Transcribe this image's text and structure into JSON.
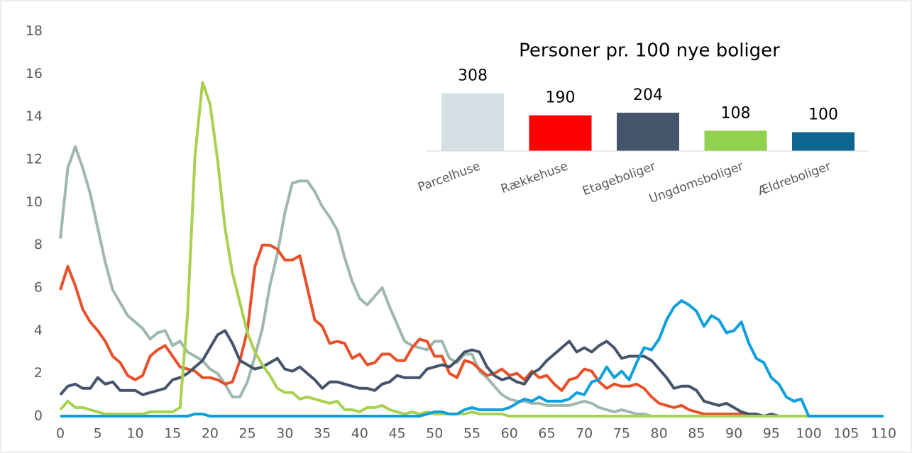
{
  "chart_data": [
    {
      "type": "line",
      "x": [
        0,
        1,
        2,
        3,
        4,
        5,
        6,
        7,
        8,
        9,
        10,
        11,
        12,
        13,
        14,
        15,
        16,
        17,
        18,
        19,
        20,
        21,
        22,
        23,
        24,
        25,
        26,
        27,
        28,
        29,
        30,
        31,
        32,
        33,
        34,
        35,
        36,
        37,
        38,
        39,
        40,
        41,
        42,
        43,
        44,
        45,
        46,
        47,
        48,
        49,
        50,
        51,
        52,
        53,
        54,
        55,
        56,
        57,
        58,
        59,
        60,
        61,
        62,
        63,
        64,
        65,
        66,
        67,
        68,
        69,
        70,
        71,
        72,
        73,
        74,
        75,
        76,
        77,
        78,
        79,
        80,
        81,
        82,
        83,
        84,
        85,
        86,
        87,
        88,
        89,
        90,
        91,
        92,
        93,
        94,
        95,
        96,
        97,
        98,
        99,
        100,
        101,
        102,
        103,
        104,
        105,
        106,
        107,
        108,
        109,
        110
      ],
      "xlim": [
        0,
        110
      ],
      "xticks": [
        0,
        5,
        10,
        15,
        20,
        25,
        30,
        35,
        40,
        45,
        50,
        55,
        60,
        65,
        70,
        75,
        80,
        85,
        90,
        95,
        100,
        105,
        110
      ],
      "ylim": [
        0,
        18
      ],
      "yticks": [
        0,
        2,
        4,
        6,
        8,
        10,
        12,
        14,
        16,
        18
      ],
      "series": [
        {
          "color": "#9fb8ad",
          "values": [
            8.3,
            11.6,
            12.6,
            11.6,
            10.4,
            8.8,
            7.2,
            5.9,
            5.3,
            4.7,
            4.4,
            4.1,
            3.6,
            3.9,
            4.0,
            3.3,
            3.5,
            3.0,
            2.8,
            2.6,
            2.2,
            2.0,
            1.5,
            0.9,
            0.9,
            1.6,
            2.8,
            4.1,
            6.1,
            7.6,
            9.5,
            10.9,
            11.0,
            11.0,
            10.5,
            9.8,
            9.3,
            8.7,
            7.4,
            6.3,
            5.5,
            5.2,
            5.6,
            6.0,
            5.1,
            4.3,
            3.5,
            3.3,
            3.2,
            3.1,
            3.5,
            3.5,
            2.7,
            2.5,
            2.9,
            2.9,
            2.1,
            1.8,
            1.4,
            1.0,
            0.8,
            0.7,
            0.7,
            0.6,
            0.6,
            0.5,
            0.5,
            0.5,
            0.5,
            0.6,
            0.7,
            0.6,
            0.4,
            0.3,
            0.2,
            0.3,
            0.2,
            0.1,
            0.1,
            0,
            0,
            0,
            0,
            0,
            0,
            0,
            0,
            0,
            0,
            0,
            0,
            0,
            0,
            0,
            0,
            0,
            0,
            0,
            0,
            0,
            0,
            0,
            0,
            0,
            0,
            0,
            0,
            0,
            0,
            0,
            0
          ]
        },
        {
          "color": "#e8502a",
          "values": [
            5.9,
            7.0,
            6.1,
            5.0,
            4.4,
            4.0,
            3.5,
            2.8,
            2.5,
            1.9,
            1.7,
            1.9,
            2.8,
            3.1,
            3.3,
            2.8,
            2.3,
            2.2,
            2.1,
            1.8,
            1.8,
            1.7,
            1.5,
            1.6,
            2.6,
            4.0,
            7.0,
            8.0,
            8.0,
            7.8,
            7.3,
            7.3,
            7.5,
            6.0,
            4.5,
            4.2,
            3.4,
            3.5,
            3.4,
            2.7,
            2.9,
            2.4,
            2.5,
            2.9,
            2.9,
            2.6,
            2.6,
            3.2,
            3.6,
            3.5,
            2.8,
            2.8,
            2.0,
            1.8,
            2.6,
            2.5,
            2.2,
            1.9,
            2.0,
            2.2,
            1.9,
            2.0,
            1.7,
            2.1,
            1.8,
            1.9,
            1.5,
            1.2,
            1.7,
            1.8,
            2.2,
            2.1,
            1.6,
            1.3,
            1.5,
            1.4,
            1.4,
            1.5,
            1.3,
            0.9,
            0.6,
            0.5,
            0.4,
            0.5,
            0.3,
            0.2,
            0.1,
            0.1,
            0.1,
            0.1,
            0.1,
            0.1,
            0,
            0,
            0,
            0,
            0,
            0,
            0,
            0,
            0,
            0,
            0,
            0,
            0,
            0,
            0,
            0,
            0,
            0,
            0
          ]
        },
        {
          "color": "#44546a",
          "values": [
            1.0,
            1.4,
            1.5,
            1.3,
            1.3,
            1.8,
            1.5,
            1.6,
            1.2,
            1.2,
            1.2,
            1.0,
            1.1,
            1.2,
            1.3,
            1.7,
            1.8,
            2.0,
            2.3,
            2.6,
            3.2,
            3.8,
            4.0,
            3.4,
            2.6,
            2.4,
            2.2,
            2.3,
            2.5,
            2.7,
            2.2,
            2.1,
            2.3,
            2.0,
            1.7,
            1.3,
            1.6,
            1.6,
            1.5,
            1.4,
            1.3,
            1.3,
            1.2,
            1.5,
            1.6,
            1.9,
            1.8,
            1.8,
            1.8,
            2.2,
            2.3,
            2.4,
            2.3,
            2.6,
            3.0,
            3.1,
            3.0,
            2.3,
            1.9,
            1.7,
            1.8,
            1.6,
            1.5,
            2.0,
            2.2,
            2.6,
            2.9,
            3.2,
            3.5,
            3.0,
            3.2,
            3.0,
            3.3,
            3.5,
            3.2,
            2.7,
            2.8,
            2.8,
            2.8,
            2.6,
            2.2,
            1.8,
            1.3,
            1.4,
            1.4,
            1.2,
            0.7,
            0.6,
            0.5,
            0.6,
            0.4,
            0.2,
            0.1,
            0.1,
            0,
            0.1,
            0,
            0,
            0,
            0,
            0,
            0,
            0,
            0,
            0,
            0,
            0,
            0,
            0,
            0,
            0
          ]
        },
        {
          "color": "#a9d04f",
          "values": [
            0.3,
            0.7,
            0.4,
            0.4,
            0.3,
            0.2,
            0.1,
            0.1,
            0.1,
            0.1,
            0.1,
            0.1,
            0.2,
            0.2,
            0.2,
            0.2,
            0.4,
            4.8,
            12.2,
            15.6,
            14.6,
            12.0,
            8.8,
            6.7,
            5.3,
            3.9,
            3.0,
            2.4,
            1.9,
            1.3,
            1.1,
            1.1,
            0.8,
            0.9,
            0.8,
            0.7,
            0.6,
            0.7,
            0.3,
            0.3,
            0.2,
            0.4,
            0.4,
            0.5,
            0.3,
            0.2,
            0.1,
            0.2,
            0.1,
            0.2,
            0.1,
            0.1,
            0.1,
            0.1,
            0.1,
            0.2,
            0.1,
            0.1,
            0.1,
            0.1,
            0,
            0,
            0,
            0,
            0,
            0,
            0,
            0,
            0,
            0,
            0,
            0,
            0,
            0,
            0,
            0,
            0,
            0,
            0,
            0,
            0,
            0,
            0,
            0,
            0,
            0,
            0,
            0,
            0,
            0,
            0,
            0,
            0,
            0,
            0,
            0,
            0,
            0,
            0,
            0,
            0,
            0,
            0,
            0,
            0,
            0,
            0,
            0,
            0,
            0,
            0
          ]
        },
        {
          "color": "#0fa0dc",
          "values": [
            0,
            0,
            0,
            0,
            0,
            0,
            0,
            0,
            0,
            0,
            0,
            0,
            0,
            0,
            0,
            0,
            0,
            0,
            0.1,
            0.1,
            0,
            0,
            0,
            0,
            0,
            0,
            0,
            0,
            0,
            0,
            0,
            0,
            0,
            0,
            0,
            0,
            0,
            0,
            0,
            0,
            0,
            0,
            0,
            0,
            0,
            0,
            0,
            0,
            0,
            0.1,
            0.2,
            0.2,
            0.1,
            0.1,
            0.3,
            0.4,
            0.3,
            0.3,
            0.3,
            0.3,
            0.4,
            0.6,
            0.8,
            0.7,
            0.9,
            0.7,
            0.7,
            0.7,
            0.8,
            1.1,
            1.0,
            1.6,
            1.7,
            2.3,
            1.8,
            2.1,
            1.7,
            2.5,
            3.2,
            3.1,
            3.6,
            4.5,
            5.1,
            5.4,
            5.2,
            4.9,
            4.2,
            4.7,
            4.5,
            3.9,
            4.0,
            4.4,
            3.4,
            2.7,
            2.5,
            1.8,
            1.5,
            0.9,
            0.7,
            0.8,
            0,
            0,
            0,
            0,
            0,
            0,
            0,
            0,
            0,
            0,
            0
          ]
        }
      ]
    },
    {
      "type": "bar",
      "title": "Personer pr. 100 nye boliger",
      "categories": [
        "Parcelhuse",
        "Rækkehuse",
        "Etageboliger",
        "Ungdomsboliger",
        "Ældreboliger"
      ],
      "values": [
        308,
        190,
        204,
        108,
        100
      ],
      "colors": [
        "#d6dfe3",
        "#ff0000",
        "#44546a",
        "#92d050",
        "#0e6690"
      ]
    }
  ]
}
